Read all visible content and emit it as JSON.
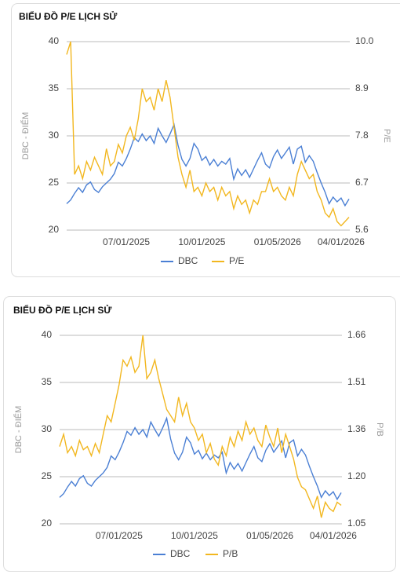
{
  "chart_data": [
    {
      "type": "line",
      "title": "BIỂU ĐỒ P/E LỊCH SỬ",
      "ylabel": "DBC - ĐIỂM",
      "y2label": "P/E",
      "categories": [
        null,
        null,
        null,
        null,
        null,
        null,
        null,
        null,
        null,
        null,
        null,
        null,
        null,
        null,
        null,
        "07/01/2025",
        null,
        null,
        null,
        null,
        null,
        null,
        null,
        null,
        null,
        null,
        null,
        null,
        null,
        null,
        null,
        null,
        null,
        null,
        "10/01/2025",
        null,
        null,
        null,
        null,
        null,
        null,
        null,
        null,
        null,
        null,
        null,
        null,
        null,
        null,
        null,
        null,
        null,
        null,
        "01/05/2026",
        null,
        null,
        null,
        null,
        null,
        null,
        null,
        null,
        null,
        null,
        null,
        null,
        null,
        null,
        null,
        "04/01/2026",
        null,
        null
      ],
      "series": [
        {
          "name": "DBC",
          "color": "#4a7fd4",
          "values": [
            22.8,
            23.2,
            23.9,
            24.5,
            24.0,
            24.8,
            25.1,
            24.3,
            24.0,
            24.6,
            25.0,
            25.4,
            26.0,
            27.2,
            26.8,
            27.6,
            28.6,
            29.8,
            29.4,
            30.2,
            29.5,
            30.0,
            29.2,
            30.8,
            30.0,
            29.3,
            30.2,
            31.2,
            29.0,
            27.5,
            26.8,
            27.6,
            29.2,
            28.6,
            27.4,
            27.8,
            26.9,
            27.5,
            26.8,
            27.3,
            27.0,
            27.6,
            25.4,
            26.5,
            25.8,
            26.4,
            25.6,
            26.5,
            27.4,
            28.2,
            27.0,
            26.6,
            27.8,
            28.5,
            27.6,
            28.2,
            28.8,
            27.0,
            28.6,
            28.9,
            27.2,
            27.9,
            27.3,
            26.1,
            25.0,
            24.0,
            22.8,
            23.5,
            23.0,
            23.4,
            22.6,
            23.3
          ]
        },
        {
          "name": "P/E",
          "color": "#f2b71f",
          "axis": "y2",
          "values": [
            9.7,
            10.0,
            6.9,
            7.1,
            6.8,
            7.2,
            7.0,
            7.3,
            7.1,
            6.9,
            7.5,
            7.1,
            7.2,
            7.6,
            7.4,
            7.8,
            8.0,
            7.7,
            8.2,
            8.9,
            8.6,
            8.7,
            8.4,
            8.9,
            8.6,
            9.1,
            8.7,
            8.0,
            7.3,
            6.9,
            6.6,
            7.0,
            6.5,
            6.6,
            6.4,
            6.7,
            6.5,
            6.6,
            6.3,
            6.6,
            6.4,
            6.5,
            6.1,
            6.4,
            6.2,
            6.3,
            6.0,
            6.3,
            6.2,
            6.5,
            6.5,
            6.8,
            6.5,
            6.6,
            6.4,
            6.3,
            6.6,
            6.4,
            6.9,
            7.2,
            7.0,
            6.8,
            6.9,
            6.5,
            6.3,
            6.0,
            5.9,
            6.1,
            5.8,
            5.7,
            5.8,
            5.9
          ]
        }
      ],
      "ylim": [
        20,
        40
      ],
      "yticks": [
        20,
        25,
        30,
        35,
        40
      ],
      "y2lim": [
        5.6,
        10.0
      ],
      "y2ticks": [
        5.6,
        6.7,
        7.8,
        8.9,
        {
          "value": 10.0,
          "label": "10.0"
        }
      ],
      "grid": true
    },
    {
      "type": "line",
      "title": "BIỂU ĐỒ P/E LỊCH SỬ",
      "ylabel": "DBC - ĐIỂM",
      "y2label": "P/B",
      "categories": [
        null,
        null,
        null,
        null,
        null,
        null,
        null,
        null,
        null,
        null,
        null,
        null,
        null,
        null,
        null,
        "07/01/2025",
        null,
        null,
        null,
        null,
        null,
        null,
        null,
        null,
        null,
        null,
        null,
        null,
        null,
        null,
        null,
        null,
        null,
        null,
        "10/01/2025",
        null,
        null,
        null,
        null,
        null,
        null,
        null,
        null,
        null,
        null,
        null,
        null,
        null,
        null,
        null,
        null,
        null,
        null,
        "01/05/2026",
        null,
        null,
        null,
        null,
        null,
        null,
        null,
        null,
        null,
        null,
        null,
        null,
        null,
        null,
        null,
        "04/01/2026",
        null,
        null
      ],
      "series": [
        {
          "name": "DBC",
          "color": "#4a7fd4",
          "values": [
            22.8,
            23.2,
            23.9,
            24.5,
            24.0,
            24.8,
            25.1,
            24.3,
            24.0,
            24.6,
            25.0,
            25.4,
            26.0,
            27.2,
            26.8,
            27.6,
            28.6,
            29.8,
            29.4,
            30.2,
            29.5,
            30.0,
            29.2,
            30.8,
            30.0,
            29.3,
            30.2,
            31.2,
            29.0,
            27.5,
            26.8,
            27.6,
            29.2,
            28.6,
            27.4,
            27.8,
            26.9,
            27.5,
            26.8,
            27.3,
            27.0,
            27.6,
            25.4,
            26.5,
            25.8,
            26.4,
            25.6,
            26.5,
            27.4,
            28.2,
            27.0,
            26.6,
            27.8,
            28.5,
            27.6,
            28.2,
            28.8,
            27.0,
            28.6,
            28.9,
            27.2,
            27.9,
            27.3,
            26.1,
            25.0,
            24.0,
            22.8,
            23.5,
            23.0,
            23.4,
            22.6,
            23.3
          ]
        },
        {
          "name": "P/B",
          "color": "#f2b71f",
          "axis": "y2",
          "values": [
            1.3,
            1.34,
            1.28,
            1.3,
            1.27,
            1.32,
            1.29,
            1.3,
            1.27,
            1.31,
            1.28,
            1.34,
            1.4,
            1.38,
            1.44,
            1.5,
            1.58,
            1.56,
            1.59,
            1.54,
            1.56,
            1.66,
            1.52,
            1.54,
            1.58,
            1.52,
            1.47,
            1.42,
            1.4,
            1.38,
            1.46,
            1.4,
            1.44,
            1.38,
            1.36,
            1.32,
            1.34,
            1.28,
            1.31,
            1.26,
            1.24,
            1.3,
            1.27,
            1.33,
            1.3,
            1.35,
            1.32,
            1.38,
            1.34,
            1.36,
            1.32,
            1.3,
            1.37,
            1.33,
            1.3,
            1.36,
            1.28,
            1.34,
            1.3,
            1.26,
            1.2,
            1.17,
            1.16,
            1.13,
            1.1,
            1.14,
            1.07,
            1.12,
            1.1,
            1.09,
            1.12,
            1.11
          ]
        }
      ],
      "ylim": [
        20,
        40
      ],
      "yticks": [
        20,
        25,
        30,
        35,
        40
      ],
      "y2lim": [
        1.05,
        1.66
      ],
      "y2ticks": [
        1.05,
        {
          "value": 1.2025,
          "label": "1.20"
        },
        {
          "value": 1.355,
          "label": "1.36"
        },
        {
          "value": 1.5075,
          "label": "1.51"
        },
        1.66
      ],
      "grid": true
    }
  ]
}
